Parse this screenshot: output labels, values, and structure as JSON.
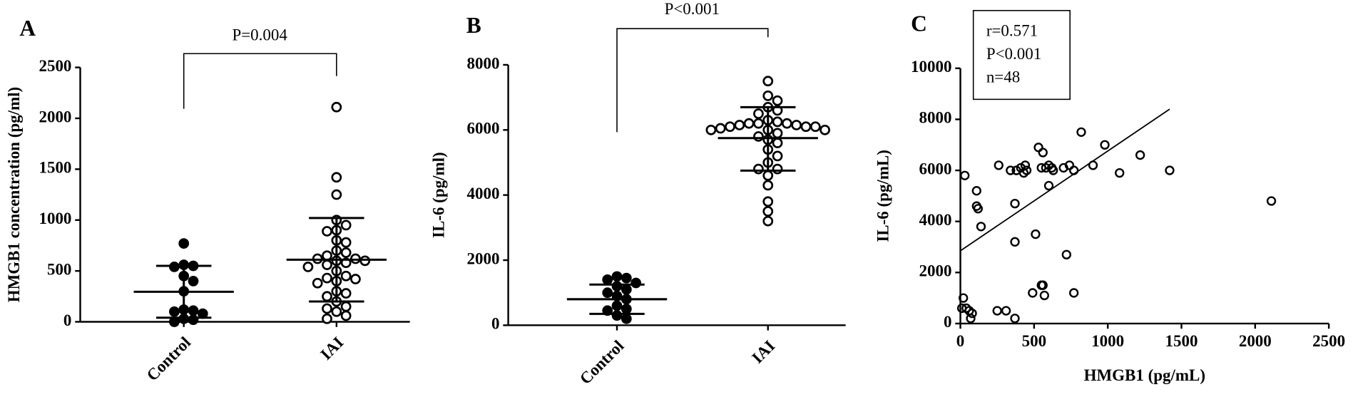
{
  "chart_data": [
    {
      "type": "dot",
      "panel": "A",
      "annotation": "P=0.004",
      "y_label": "HMGB1 concentration (pg/ml)",
      "categories": [
        "Control",
        "IAI"
      ],
      "groups": [
        {
          "filled": true,
          "values": [
            770,
            560,
            550,
            540,
            450,
            400,
            300,
            120,
            110,
            100,
            80,
            30,
            20,
            0
          ],
          "summary": {
            "mean": 295,
            "lower": 40,
            "upper": 550
          }
        },
        {
          "filled": false,
          "values": [
            2110,
            1420,
            1250,
            1000,
            950,
            900,
            890,
            800,
            780,
            700,
            680,
            650,
            620,
            620,
            600,
            600,
            580,
            560,
            540,
            500,
            450,
            430,
            420,
            400,
            380,
            300,
            280,
            250,
            200,
            150,
            130,
            100,
            60,
            30
          ],
          "summary": {
            "mean": 610,
            "lower": 200,
            "upper": 1020
          }
        }
      ],
      "ylim": [
        0,
        2500
      ],
      "yticks": [
        0,
        500,
        1000,
        1500,
        2000,
        2500
      ]
    },
    {
      "type": "dot",
      "panel": "B",
      "annotation": "P<0.001",
      "y_label": "IL-6 (pg/ml)",
      "categories": [
        "Control",
        "IAI"
      ],
      "groups": [
        {
          "filled": true,
          "values": [
            1500,
            1450,
            1400,
            1300,
            1200,
            1100,
            1000,
            900,
            800,
            600,
            500,
            450,
            300,
            200
          ],
          "summary": {
            "mean": 800,
            "lower": 350,
            "upper": 1250
          }
        },
        {
          "filled": false,
          "values": [
            7500,
            7050,
            6900,
            6700,
            6600,
            6500,
            6300,
            6250,
            6200,
            6200,
            6200,
            6150,
            6150,
            6100,
            6100,
            6100,
            6050,
            6000,
            6000,
            6000,
            5900,
            5800,
            5700,
            5600,
            5400,
            5200,
            5000,
            4800,
            4800,
            4600,
            4300,
            3800,
            3500,
            3200
          ],
          "summary": {
            "mean": 5750,
            "lower": 4750,
            "upper": 6700
          }
        }
      ],
      "ylim": [
        0,
        8000
      ],
      "yticks": [
        0,
        2000,
        4000,
        6000,
        8000
      ]
    },
    {
      "type": "scatter",
      "panel": "C",
      "x_label": "HMGB1 (pg/mL)",
      "y_label": "IL-6 (pg/mL)",
      "stats": [
        "r=0.571",
        "P<0.001",
        "n=48"
      ],
      "x": [
        20,
        10,
        40,
        60,
        80,
        70,
        30,
        110,
        110,
        120,
        140,
        250,
        310,
        370,
        260,
        340,
        380,
        410,
        430,
        440,
        450,
        370,
        370,
        490,
        510,
        530,
        560,
        550,
        580,
        600,
        620,
        630,
        600,
        550,
        560,
        570,
        700,
        740,
        770,
        820,
        900,
        980,
        1080,
        1220,
        1420,
        2110,
        720,
        770
      ],
      "y": [
        1000,
        600,
        600,
        500,
        400,
        200,
        5800,
        5200,
        4600,
        4500,
        3800,
        500,
        500,
        200,
        6200,
        6000,
        6000,
        6100,
        5900,
        6200,
        6000,
        4700,
        3200,
        1200,
        3500,
        6900,
        6700,
        6100,
        6100,
        6200,
        6100,
        6000,
        5400,
        1500,
        1500,
        1100,
        6100,
        6200,
        6000,
        7500,
        6200,
        7000,
        5900,
        6600,
        6000,
        4800,
        2700,
        1200
      ],
      "regression": {
        "x": [
          0,
          1420
        ],
        "y": [
          2850,
          8400
        ]
      },
      "xlim": [
        0,
        2500
      ],
      "xticks": [
        0,
        500,
        1000,
        1500,
        2000,
        2500
      ],
      "ylim": [
        0,
        10000
      ],
      "yticks": [
        0,
        2000,
        4000,
        6000,
        8000,
        10000
      ]
    }
  ]
}
